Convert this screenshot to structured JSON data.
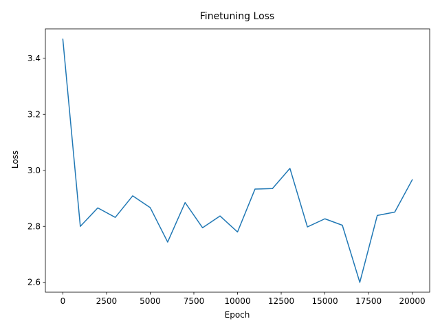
{
  "chart_data": {
    "type": "line",
    "title": "Finetuning Loss",
    "xlabel": "Epoch",
    "ylabel": "Loss",
    "xlim": [
      -1000,
      21000
    ],
    "ylim": [
      2.565,
      3.505
    ],
    "xticks": [
      0,
      2500,
      5000,
      7500,
      10000,
      12500,
      15000,
      17500,
      20000
    ],
    "yticks": [
      2.6,
      2.8,
      3.0,
      3.2,
      3.4
    ],
    "grid": false,
    "series": [
      {
        "color": "#1f77b4",
        "x": [
          0,
          1000,
          2000,
          3000,
          4000,
          5000,
          6000,
          7000,
          8000,
          9000,
          10000,
          11000,
          12000,
          13000,
          14000,
          15000,
          16000,
          17000,
          18000,
          19000,
          20000
        ],
        "y": [
          3.468,
          2.8,
          2.866,
          2.832,
          2.909,
          2.867,
          2.744,
          2.885,
          2.795,
          2.837,
          2.78,
          2.933,
          2.935,
          3.007,
          2.798,
          2.827,
          2.804,
          2.6,
          2.839,
          2.851,
          2.966
        ]
      }
    ]
  }
}
